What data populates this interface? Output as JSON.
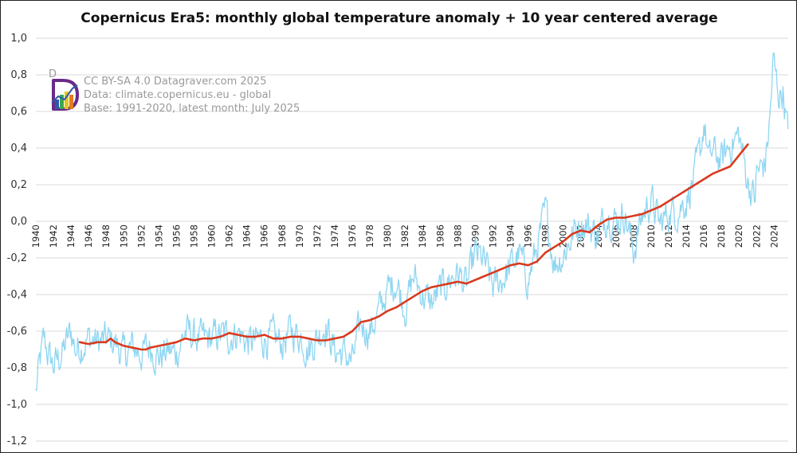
{
  "chart_data": {
    "type": "line",
    "title": "Copernicus Era5: monthly global temperature anomaly + 10 year centered average",
    "xlabel": "",
    "ylabel": "",
    "xlim": [
      1940,
      2025.6
    ],
    "ylim": [
      -1.2,
      1.0
    ],
    "y_ticks": [
      1.0,
      0.8,
      0.6,
      0.4,
      0.2,
      0.0,
      -0.2,
      -0.4,
      -0.6,
      -0.8,
      -1.0,
      -1.2
    ],
    "y_tick_labels": [
      "1,0",
      "0,8",
      "0,6",
      "0,4",
      "0,2",
      "0,0",
      "-0,2",
      "-0,4",
      "-0,6",
      "-0,8",
      "-1,0",
      "-1,2"
    ],
    "x_tick_labels": [
      "1940",
      "1942",
      "1944",
      "1946",
      "1948",
      "1950",
      "1952",
      "1954",
      "1956",
      "1958",
      "1960",
      "1962",
      "1964",
      "1966",
      "1968",
      "1970",
      "1972",
      "1974",
      "1976",
      "1978",
      "1980",
      "1982",
      "1984",
      "1986",
      "1988",
      "1990",
      "1992",
      "1994",
      "1996",
      "1998",
      "2000",
      "2002",
      "2004",
      "2006",
      "2008",
      "2010",
      "2012",
      "2014",
      "2016",
      "2018",
      "2020",
      "2022",
      "2024"
    ],
    "grid": true,
    "series": [
      {
        "name": "monthly global temperature anomaly",
        "color": "#8fd6f2",
        "style": "monthly",
        "anchors": {
          "x": [
            1940.0,
            1940.3,
            1940.9,
            1941.5,
            1942.0,
            1943.0,
            1944.0,
            1944.5,
            1945.0,
            1946.0,
            1947.0,
            1948.0,
            1949.0,
            1950.0,
            1951.0,
            1952.0,
            1953.0,
            1954.0,
            1955.0,
            1956.0,
            1957.0,
            1958.0,
            1959.0,
            1960.0,
            1961.0,
            1962.0,
            1963.0,
            1964.0,
            1965.0,
            1966.0,
            1967.0,
            1968.0,
            1969.0,
            1970.0,
            1971.0,
            1972.0,
            1973.0,
            1974.0,
            1975.0,
            1976.0,
            1977.0,
            1978.0,
            1979.0,
            1980.0,
            1981.0,
            1982.0,
            1983.0,
            1984.0,
            1985.0,
            1986.0,
            1987.0,
            1988.0,
            1989.0,
            1990.0,
            1991.0,
            1992.0,
            1993.0,
            1994.0,
            1995.0,
            1996.0,
            1997.0,
            1998.0,
            1999.0,
            2000.0,
            2001.0,
            2002.0,
            2003.0,
            2004.0,
            2005.0,
            2006.0,
            2007.0,
            2008.0,
            2009.0,
            2010.0,
            2011.0,
            2012.0,
            2013.0,
            2014.0,
            2015.0,
            2015.7,
            2016.0,
            2016.6,
            2017.0,
            2018.0,
            2019.0,
            2020.0,
            2021.0,
            2021.8,
            2022.0,
            2023.0,
            2023.5,
            2023.9,
            2024.2,
            2024.6,
            2025.0,
            2025.6
          ],
          "y": [
            -0.94,
            -0.82,
            -0.65,
            -0.74,
            -0.79,
            -0.72,
            -0.6,
            -0.7,
            -0.68,
            -0.64,
            -0.66,
            -0.65,
            -0.66,
            -0.73,
            -0.69,
            -0.72,
            -0.68,
            -0.74,
            -0.71,
            -0.72,
            -0.6,
            -0.63,
            -0.65,
            -0.64,
            -0.62,
            -0.63,
            -0.6,
            -0.66,
            -0.66,
            -0.64,
            -0.64,
            -0.67,
            -0.6,
            -0.62,
            -0.7,
            -0.63,
            -0.56,
            -0.71,
            -0.72,
            -0.77,
            -0.56,
            -0.6,
            -0.5,
            -0.38,
            -0.32,
            -0.47,
            -0.3,
            -0.4,
            -0.45,
            -0.38,
            -0.32,
            -0.28,
            -0.36,
            -0.18,
            -0.22,
            -0.36,
            -0.32,
            -0.25,
            -0.18,
            -0.32,
            -0.15,
            0.05,
            -0.23,
            -0.18,
            -0.08,
            0.0,
            -0.03,
            -0.08,
            0.05,
            0.0,
            0.05,
            -0.16,
            0.03,
            0.12,
            -0.02,
            0.05,
            0.06,
            0.12,
            0.25,
            0.4,
            0.55,
            0.32,
            0.38,
            0.33,
            0.42,
            0.47,
            0.22,
            0.12,
            0.26,
            0.32,
            0.55,
            0.88,
            0.78,
            0.68,
            0.72,
            0.45
          ]
        }
      },
      {
        "name": "10 year centered average",
        "color": "#d93a1e",
        "style": "smooth",
        "x": [
          1945.0,
          1946.0,
          1947.0,
          1948.0,
          1948.5,
          1949.0,
          1950.0,
          1951.0,
          1952.0,
          1952.5,
          1953.0,
          1954.0,
          1955.0,
          1956.0,
          1957.0,
          1958.0,
          1959.0,
          1960.0,
          1961.0,
          1962.0,
          1963.0,
          1964.0,
          1965.0,
          1966.0,
          1967.0,
          1968.0,
          1969.0,
          1970.0,
          1971.0,
          1972.0,
          1973.0,
          1974.0,
          1975.0,
          1976.0,
          1977.0,
          1978.0,
          1979.0,
          1980.0,
          1981.0,
          1982.0,
          1983.0,
          1984.0,
          1985.0,
          1986.0,
          1987.0,
          1988.0,
          1989.0,
          1990.0,
          1991.0,
          1992.0,
          1993.0,
          1994.0,
          1995.0,
          1996.0,
          1997.0,
          1998.0,
          1999.0,
          2000.0,
          2001.0,
          2002.0,
          2003.0,
          2004.0,
          2005.0,
          2006.0,
          2007.0,
          2008.0,
          2009.0,
          2010.0,
          2011.0,
          2012.0,
          2013.0,
          2014.0,
          2015.0,
          2016.0,
          2017.0,
          2018.0,
          2019.0,
          2020.0,
          2021.0
        ],
        "y": [
          -0.66,
          -0.67,
          -0.66,
          -0.66,
          -0.64,
          -0.66,
          -0.68,
          -0.69,
          -0.7,
          -0.7,
          -0.69,
          -0.68,
          -0.67,
          -0.66,
          -0.64,
          -0.65,
          -0.64,
          -0.64,
          -0.63,
          -0.61,
          -0.62,
          -0.63,
          -0.63,
          -0.62,
          -0.64,
          -0.64,
          -0.63,
          -0.63,
          -0.64,
          -0.65,
          -0.65,
          -0.64,
          -0.63,
          -0.6,
          -0.55,
          -0.54,
          -0.52,
          -0.49,
          -0.47,
          -0.44,
          -0.41,
          -0.38,
          -0.36,
          -0.35,
          -0.34,
          -0.33,
          -0.34,
          -0.32,
          -0.3,
          -0.28,
          -0.26,
          -0.24,
          -0.23,
          -0.24,
          -0.22,
          -0.17,
          -0.14,
          -0.11,
          -0.07,
          -0.05,
          -0.06,
          -0.02,
          0.01,
          0.02,
          0.02,
          0.03,
          0.04,
          0.06,
          0.08,
          0.11,
          0.14,
          0.17,
          0.2,
          0.23,
          0.26,
          0.28,
          0.3,
          0.36,
          0.42
        ]
      }
    ],
    "annotations": [
      "CC BY-SA 4.0 Datagraver.com 2025",
      "Data: climate.copernicus.eu - global",
      "Base: 1991-2020, latest month: July 2025"
    ]
  },
  "logo": {
    "letter": "D",
    "colors": [
      "#6a2a8a",
      "#2b59a6",
      "#3aa655",
      "#e6c619",
      "#e07b26"
    ]
  }
}
